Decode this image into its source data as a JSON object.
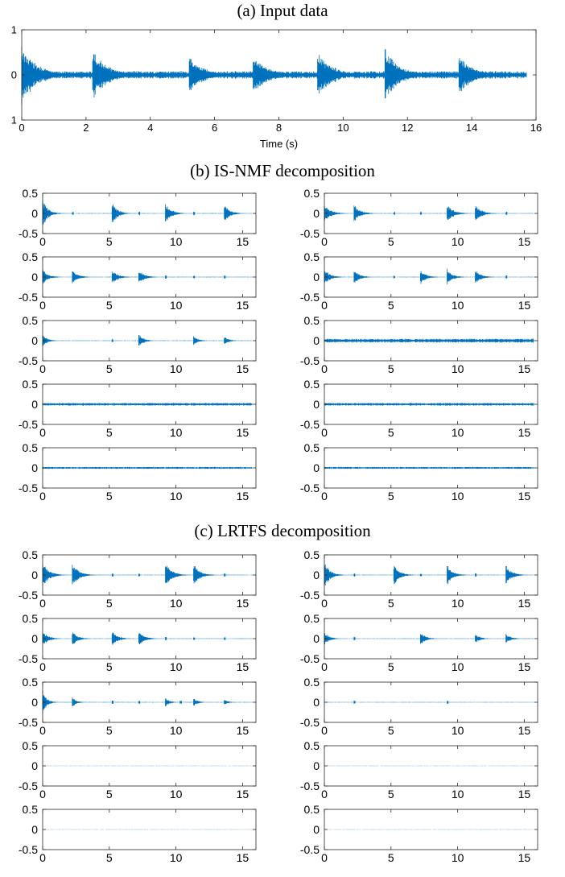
{
  "sections": [
    {
      "title": "(a) Input data"
    },
    {
      "title": "(b) IS-NMF decomposition"
    },
    {
      "title": "(c) LRTFS decomposition"
    }
  ],
  "colors": {
    "signal": "#0072BD",
    "axis": "#262626",
    "text": "#000000"
  },
  "chart_data": [
    {
      "type": "line",
      "section": "(a) Input data",
      "title": "",
      "xlabel": "Time (s)",
      "ylabel": "",
      "xlim": [
        0,
        16
      ],
      "ylim": [
        -1,
        1
      ],
      "xticks": [
        0,
        2,
        4,
        6,
        8,
        10,
        12,
        14,
        16
      ],
      "yticks": [
        1,
        0,
        1
      ],
      "onsets": [
        0.0,
        2.2,
        5.2,
        7.2,
        9.2,
        11.3,
        13.6
      ],
      "envelope_peaks": [
        0.7,
        0.6,
        0.45,
        0.45,
        0.55,
        0.6,
        0.45
      ],
      "decay": 0.45,
      "floor": 0.06,
      "end": 15.7
    },
    {
      "type": "line",
      "section": "(b) IS-NMF decomposition",
      "component": 1,
      "xlim": [
        0,
        16
      ],
      "ylim": [
        -0.5,
        0.5
      ],
      "xticks": [
        0,
        5,
        10,
        15
      ],
      "yticks": [
        0.5,
        0,
        -0.5
      ],
      "onsets": [
        0.0,
        5.2,
        9.2,
        13.6
      ],
      "envelope_peaks": [
        0.35,
        0.3,
        0.3,
        0.25
      ],
      "minor_onsets": [
        2.2,
        7.2,
        11.3
      ],
      "decay": 0.4,
      "floor": 0.005,
      "end": 15.7
    },
    {
      "type": "line",
      "section": "(b) IS-NMF decomposition",
      "component": 2,
      "xlim": [
        0,
        16
      ],
      "ylim": [
        -0.5,
        0.5
      ],
      "xticks": [
        0,
        5,
        10,
        15
      ],
      "yticks": [
        0.5,
        0,
        -0.5
      ],
      "onsets": [
        0.0,
        2.2,
        9.2,
        11.3
      ],
      "envelope_peaks": [
        0.25,
        0.25,
        0.25,
        0.25
      ],
      "minor_onsets": [
        5.2,
        7.2,
        13.6
      ],
      "decay": 0.45,
      "floor": 0.005,
      "end": 15.7
    },
    {
      "type": "line",
      "section": "(b) IS-NMF decomposition",
      "component": 3,
      "xlim": [
        0,
        16
      ],
      "ylim": [
        -0.5,
        0.5
      ],
      "xticks": [
        0,
        5,
        10,
        15
      ],
      "yticks": [
        0.5,
        0,
        -0.5
      ],
      "onsets": [
        0.0,
        2.2,
        5.2,
        7.2
      ],
      "envelope_peaks": [
        0.2,
        0.2,
        0.2,
        0.2
      ],
      "minor_onsets": [
        9.2,
        11.3,
        13.6
      ],
      "decay": 0.4,
      "floor": 0.005,
      "end": 15.7
    },
    {
      "type": "line",
      "section": "(b) IS-NMF decomposition",
      "component": 4,
      "xlim": [
        0,
        16
      ],
      "ylim": [
        -0.5,
        0.5
      ],
      "xticks": [
        0,
        5,
        10,
        15
      ],
      "yticks": [
        0.5,
        0,
        -0.5
      ],
      "onsets": [
        0.0,
        2.2,
        7.2,
        9.2,
        11.3
      ],
      "envelope_peaks": [
        0.22,
        0.2,
        0.2,
        0.22,
        0.22
      ],
      "minor_onsets": [
        5.2,
        13.6
      ],
      "decay": 0.4,
      "floor": 0.005,
      "end": 15.7
    },
    {
      "type": "line",
      "section": "(b) IS-NMF decomposition",
      "component": 5,
      "xlim": [
        0,
        16
      ],
      "ylim": [
        -0.5,
        0.5
      ],
      "xticks": [
        0,
        5,
        10,
        15
      ],
      "yticks": [
        0.5,
        0,
        -0.5
      ],
      "onsets": [
        0.0,
        7.2,
        11.3,
        13.6
      ],
      "envelope_peaks": [
        0.15,
        0.18,
        0.12,
        0.12
      ],
      "minor_onsets": [
        5.2
      ],
      "decay": 0.35,
      "floor": 0.005,
      "end": 15.7
    },
    {
      "type": "line",
      "section": "(b) IS-NMF decomposition",
      "component": 6,
      "xlim": [
        0,
        16
      ],
      "ylim": [
        -0.5,
        0.5
      ],
      "xticks": [
        0,
        5,
        10,
        15
      ],
      "yticks": [
        0.5,
        0,
        -0.5
      ],
      "onsets": [],
      "envelope_peaks": [],
      "minor_onsets": [],
      "decay": 0.4,
      "floor": 0.035,
      "end": 15.7
    },
    {
      "type": "line",
      "section": "(b) IS-NMF decomposition",
      "component": 7,
      "xlim": [
        0,
        16
      ],
      "ylim": [
        -0.5,
        0.5
      ],
      "xticks": [
        0,
        5,
        10,
        15
      ],
      "yticks": [
        0.5,
        0,
        -0.5
      ],
      "onsets": [
        1.9,
        11.3
      ],
      "envelope_peaks": [
        0.06,
        0.05
      ],
      "minor_onsets": [],
      "decay": 0.3,
      "floor": 0.025,
      "end": 15.7
    },
    {
      "type": "line",
      "section": "(b) IS-NMF decomposition",
      "component": 8,
      "xlim": [
        0,
        16
      ],
      "ylim": [
        -0.5,
        0.5
      ],
      "xticks": [
        0,
        5,
        10,
        15
      ],
      "yticks": [
        0.5,
        0,
        -0.5
      ],
      "onsets": [],
      "envelope_peaks": [],
      "minor_onsets": [],
      "decay": 0.4,
      "floor": 0.025,
      "end": 15.7
    },
    {
      "type": "line",
      "section": "(b) IS-NMF decomposition",
      "component": 9,
      "xlim": [
        0,
        16
      ],
      "ylim": [
        -0.5,
        0.5
      ],
      "xticks": [
        0,
        5,
        10,
        15
      ],
      "yticks": [
        0.5,
        0,
        -0.5
      ],
      "onsets": [],
      "envelope_peaks": [],
      "minor_onsets": [],
      "decay": 0.4,
      "floor": 0.018,
      "end": 15.7
    },
    {
      "type": "line",
      "section": "(b) IS-NMF decomposition",
      "component": 10,
      "xlim": [
        0,
        16
      ],
      "ylim": [
        -0.5,
        0.5
      ],
      "xticks": [
        0,
        5,
        10,
        15
      ],
      "yticks": [
        0.5,
        0,
        -0.5
      ],
      "onsets": [],
      "envelope_peaks": [],
      "minor_onsets": [],
      "decay": 0.4,
      "floor": 0.018,
      "end": 15.7
    },
    {
      "type": "line",
      "section": "(c) LRTFS decomposition",
      "component": 1,
      "xlim": [
        0,
        16
      ],
      "ylim": [
        -0.5,
        0.5
      ],
      "xticks": [
        0,
        5,
        10,
        15
      ],
      "yticks": [
        0.5,
        0,
        -0.5
      ],
      "onsets": [
        0.0,
        2.2,
        9.2,
        11.3
      ],
      "envelope_peaks": [
        0.35,
        0.35,
        0.35,
        0.3
      ],
      "minor_onsets": [
        5.2,
        7.2,
        13.6
      ],
      "decay": 0.45,
      "floor": 0.005,
      "end": 15.7
    },
    {
      "type": "line",
      "section": "(c) LRTFS decomposition",
      "component": 2,
      "xlim": [
        0,
        16
      ],
      "ylim": [
        -0.5,
        0.5
      ],
      "xticks": [
        0,
        5,
        10,
        15
      ],
      "yticks": [
        0.5,
        0,
        -0.5
      ],
      "onsets": [
        0.0,
        5.2,
        9.2,
        13.6
      ],
      "envelope_peaks": [
        0.35,
        0.3,
        0.3,
        0.3
      ],
      "minor_onsets": [
        2.2,
        7.2,
        11.3
      ],
      "decay": 0.4,
      "floor": 0.005,
      "end": 15.7
    },
    {
      "type": "line",
      "section": "(c) LRTFS decomposition",
      "component": 3,
      "xlim": [
        0,
        16
      ],
      "ylim": [
        -0.5,
        0.5
      ],
      "xticks": [
        0,
        5,
        10,
        15
      ],
      "yticks": [
        0.5,
        0,
        -0.5
      ],
      "onsets": [
        0.0,
        2.2,
        5.2,
        7.2
      ],
      "envelope_peaks": [
        0.2,
        0.2,
        0.2,
        0.2
      ],
      "minor_onsets": [
        9.2,
        11.3,
        13.6
      ],
      "decay": 0.4,
      "floor": 0.005,
      "end": 15.7
    },
    {
      "type": "line",
      "section": "(c) LRTFS decomposition",
      "component": 4,
      "xlim": [
        0,
        16
      ],
      "ylim": [
        -0.5,
        0.5
      ],
      "xticks": [
        0,
        5,
        10,
        15
      ],
      "yticks": [
        0.5,
        0,
        -0.5
      ],
      "onsets": [
        0.0,
        7.2,
        11.3,
        13.6
      ],
      "envelope_peaks": [
        0.18,
        0.2,
        0.14,
        0.14
      ],
      "minor_onsets": [
        2.2
      ],
      "decay": 0.35,
      "floor": 0.005,
      "end": 15.7
    },
    {
      "type": "line",
      "section": "(c) LRTFS decomposition",
      "component": 5,
      "xlim": [
        0,
        16
      ],
      "ylim": [
        -0.5,
        0.5
      ],
      "xticks": [
        0,
        5,
        10,
        15
      ],
      "yticks": [
        0.5,
        0,
        -0.5
      ],
      "onsets": [
        0.0,
        2.2,
        9.2,
        11.3,
        13.6
      ],
      "envelope_peaks": [
        0.3,
        0.15,
        0.12,
        0.12,
        0.08
      ],
      "minor_onsets": [
        5.2,
        7.2,
        10.3
      ],
      "decay": 0.3,
      "floor": 0.005,
      "end": 15.7
    },
    {
      "type": "line",
      "section": "(c) LRTFS decomposition",
      "component": 6,
      "xlim": [
        0,
        16
      ],
      "ylim": [
        -0.5,
        0.5
      ],
      "xticks": [
        0,
        5,
        10,
        15
      ],
      "yticks": [
        0.5,
        0,
        -0.5
      ],
      "onsets": [],
      "envelope_peaks": [],
      "minor_onsets": [
        2.2,
        9.2
      ],
      "decay": 0.3,
      "floor": 0.004,
      "end": 15.7
    },
    {
      "type": "line",
      "section": "(c) LRTFS decomposition",
      "component": 7,
      "xlim": [
        0,
        16
      ],
      "ylim": [
        -0.5,
        0.5
      ],
      "xticks": [
        0,
        5,
        10,
        15
      ],
      "yticks": [
        0.5,
        0,
        -0.5
      ],
      "onsets": [],
      "envelope_peaks": [],
      "minor_onsets": [],
      "decay": 0.3,
      "floor": 0.002,
      "end": 15.7
    },
    {
      "type": "line",
      "section": "(c) LRTFS decomposition",
      "component": 8,
      "xlim": [
        0,
        16
      ],
      "ylim": [
        -0.5,
        0.5
      ],
      "xticks": [
        0,
        5,
        10,
        15
      ],
      "yticks": [
        0.5,
        0,
        -0.5
      ],
      "onsets": [],
      "envelope_peaks": [],
      "minor_onsets": [],
      "decay": 0.3,
      "floor": 0.002,
      "end": 15.7
    },
    {
      "type": "line",
      "section": "(c) LRTFS decomposition",
      "component": 9,
      "xlim": [
        0,
        16
      ],
      "ylim": [
        -0.5,
        0.5
      ],
      "xticks": [
        0,
        5,
        10,
        15
      ],
      "yticks": [
        0.5,
        0,
        -0.5
      ],
      "onsets": [],
      "envelope_peaks": [],
      "minor_onsets": [],
      "decay": 0.3,
      "floor": 0.002,
      "end": 15.7
    },
    {
      "type": "line",
      "section": "(c) LRTFS decomposition",
      "component": 10,
      "xlim": [
        0,
        16
      ],
      "ylim": [
        -0.5,
        0.5
      ],
      "xticks": [
        0,
        5,
        10,
        15
      ],
      "yticks": [
        0.5,
        0,
        -0.5
      ],
      "onsets": [],
      "envelope_peaks": [],
      "minor_onsets": [],
      "decay": 0.3,
      "floor": 0.002,
      "end": 15.7
    }
  ]
}
